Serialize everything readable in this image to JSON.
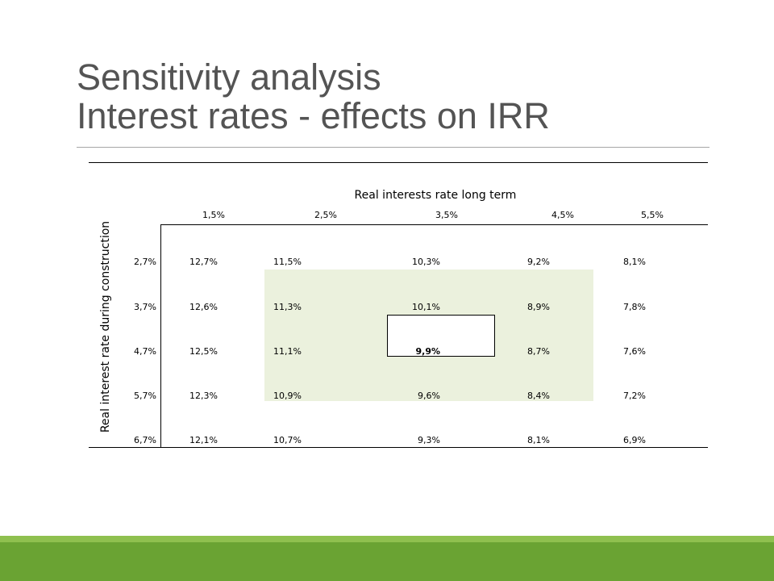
{
  "slide": {
    "title_line1": "Sensitivity analysis",
    "title_line2": "Interest rates - effects on IRR"
  },
  "table": {
    "col_title": "Real interests rate long term",
    "row_title": "Real interest rate during construction",
    "col_headers": [
      "1,5%",
      "2,5%",
      "3,5%",
      "4,5%",
      "5,5%"
    ],
    "rows": [
      {
        "label": "2,7%",
        "values": [
          "12,7%",
          "11,5%",
          "10,3%",
          "9,2%",
          "8,1%"
        ]
      },
      {
        "label": "3,7%",
        "values": [
          "12,6%",
          "11,3%",
          "10,1%",
          "8,9%",
          "7,8%"
        ]
      },
      {
        "label": "4,7%",
        "values": [
          "12,5%",
          "11,1%",
          "9,9%",
          "8,7%",
          "7,6%"
        ]
      },
      {
        "label": "5,7%",
        "values": [
          "12,3%",
          "10,9%",
          "9,6%",
          "8,4%",
          "7,2%"
        ]
      },
      {
        "label": "6,7%",
        "values": [
          "12,1%",
          "10,7%",
          "9,3%",
          "8,1%",
          "6,9%"
        ]
      }
    ],
    "highlight_color": "#ebf1dd"
  },
  "theme": {
    "accent": "#6aa333",
    "accent_light": "#8fc04f",
    "title_color": "#545454"
  }
}
